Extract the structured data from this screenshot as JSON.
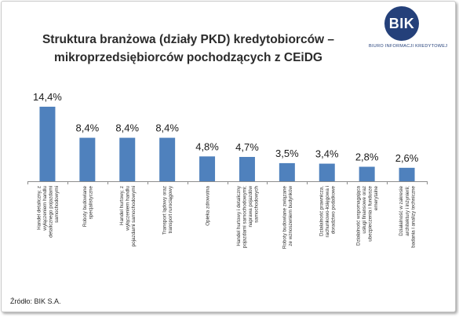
{
  "title_line1": "Struktura branżowa (działy PKD) kredytobiorców –",
  "title_line2": "mikroprzedsiębiorców pochodzących z CEiDG",
  "logo": {
    "mark": "BIK",
    "caption": "BIURO INFORMACJI KREDYTOWEJ",
    "color": "#24407a"
  },
  "source": "Źródło: BIK S.A.",
  "chart_data": {
    "type": "bar",
    "bar_color": "#4f81bd",
    "categories": [
      [
        "Handel detaliczny, z",
        "wyłączeniem handlu",
        "detalicznego pojazdami",
        "samochodowymi"
      ],
      [
        "Roboty budowlane",
        "specjalistyczne"
      ],
      [
        "Handel hurtowy, z",
        "wyłączeniem handlu",
        "pojazdami samochodowymi"
      ],
      [
        "Transport lądowy oraz",
        "transport rurociągowy"
      ],
      [
        "Opieka zdrowotna"
      ],
      [
        "Handel hurtowy i detaliczny",
        "pojazdami samochodowymi;",
        "naprawa pojazdów",
        "samochodowych"
      ],
      [
        "Roboty budowlane związane",
        "ze wznoszeniem budynków"
      ],
      [
        "Działalność prawnicza,",
        "rachunkowo-księgowa i",
        "doradztwo podatkowe"
      ],
      [
        "Działalność wspomagająca",
        "usługi finansowe oraz",
        "ubezpieczenia i fundusze",
        "emerytalne"
      ],
      [
        "Działalność w zakresie",
        "architektury i inżynierii;",
        "badania i analizy techniczne"
      ]
    ],
    "values": [
      14.4,
      8.4,
      8.4,
      8.4,
      4.8,
      4.7,
      3.5,
      3.4,
      2.8,
      2.6
    ],
    "value_labels": [
      "14,4%",
      "8,4%",
      "8,4%",
      "8,4%",
      "4,8%",
      "4,7%",
      "3,5%",
      "3,4%",
      "2,8%",
      "2,6%"
    ],
    "ylim": [
      0,
      14.4
    ],
    "grid": false,
    "legend": "none"
  }
}
